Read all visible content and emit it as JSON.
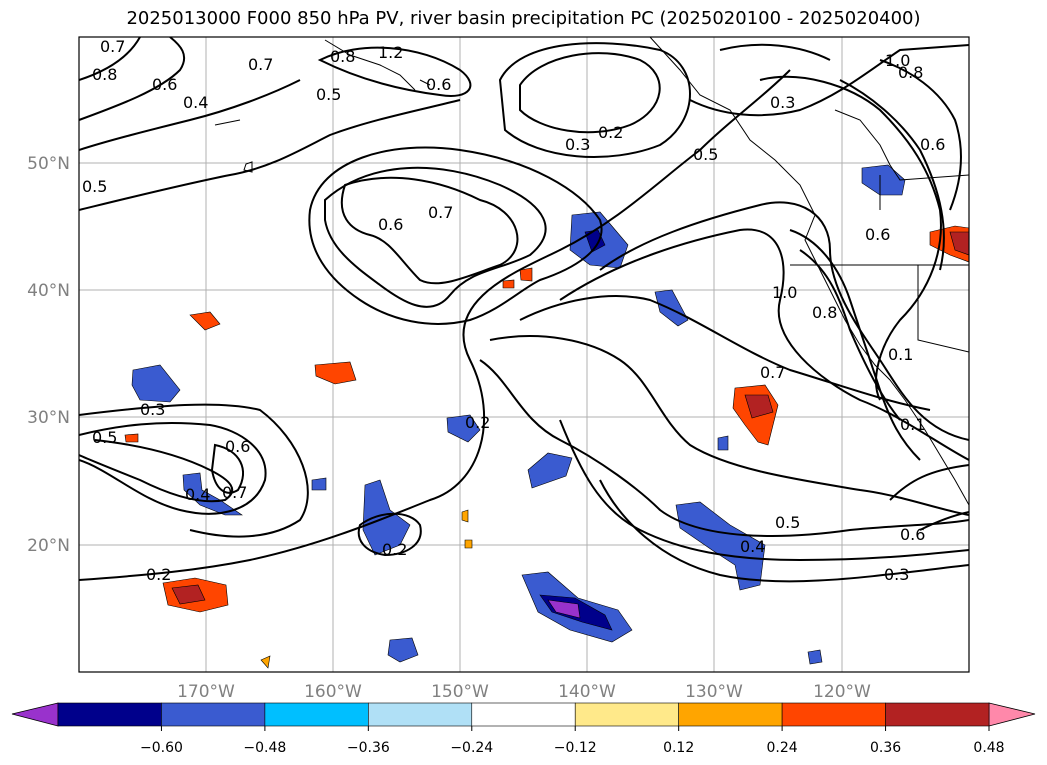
{
  "title": "2025013000 F000 850 hPa PV, river basin precipitation PC (2025020100 - 2025020400)",
  "lat_labels": [
    "50°N",
    "40°N",
    "30°N",
    "20°N"
  ],
  "lon_labels": [
    "170°W",
    "160°W",
    "150°W",
    "140°W",
    "130°W",
    "120°W"
  ],
  "colorbar": {
    "colors": [
      "#9932cc",
      "#00008b",
      "#3a5bd0",
      "#00bfff",
      "#b0e0f6",
      "#ffffff",
      "#ffe98a",
      "#ffa500",
      "#ff4500",
      "#b22222",
      "#ff88aa"
    ],
    "tick_labels": [
      "−0.60",
      "−0.48",
      "−0.36",
      "−0.24",
      "−0.12",
      "0.12",
      "0.24",
      "0.36",
      "0.48",
      "0.60"
    ]
  },
  "contour_labels": [
    "0.7",
    "0.8",
    "0.6",
    "0.4",
    "1.2",
    "0.8",
    "0.5",
    "0.6",
    "0.7",
    "0.5",
    "0.3",
    "0.2",
    "0.5",
    "0.3",
    "1.0",
    "0.8",
    "0.6",
    "0.7",
    "0.6",
    "1.0",
    "0.8",
    "0.7",
    "0.1",
    "0.3",
    "0.5",
    "0.6",
    "0.4",
    "0.1",
    "0.2",
    "0.2",
    "0.5",
    "0.4",
    "0.3",
    "0.6",
    "0.2",
    "0.6",
    "0.7"
  ],
  "icons": {
    "colorbar_left": "triangle-left",
    "colorbar_right": "triangle-right"
  }
}
